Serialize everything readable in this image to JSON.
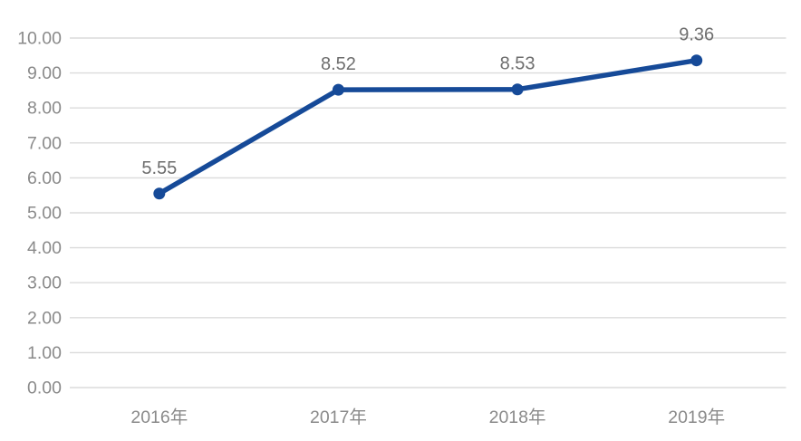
{
  "chart_data": {
    "type": "line",
    "title": "",
    "xlabel": "",
    "ylabel": "",
    "categories": [
      "2016年",
      "2017年",
      "2018年",
      "2019年"
    ],
    "series": [
      {
        "name": "value",
        "values": [
          5.55,
          8.52,
          8.53,
          9.36
        ]
      }
    ],
    "data_labels": [
      "5.55",
      "8.52",
      "8.53",
      "9.36"
    ],
    "y_ticks": [
      "0.00",
      "1.00",
      "2.00",
      "3.00",
      "4.00",
      "5.00",
      "6.00",
      "7.00",
      "8.00",
      "9.00",
      "10.00"
    ],
    "ylim": [
      0,
      10
    ],
    "grid": "horizontal-only",
    "legend_position": "none",
    "colors": {
      "line": "#164A98",
      "marker": "#164A98",
      "gridline": "#DBDBDB",
      "axis_text": "#8A8A8A",
      "data_label_text": "#6E6E6E",
      "background": "#FFFFFF"
    }
  }
}
